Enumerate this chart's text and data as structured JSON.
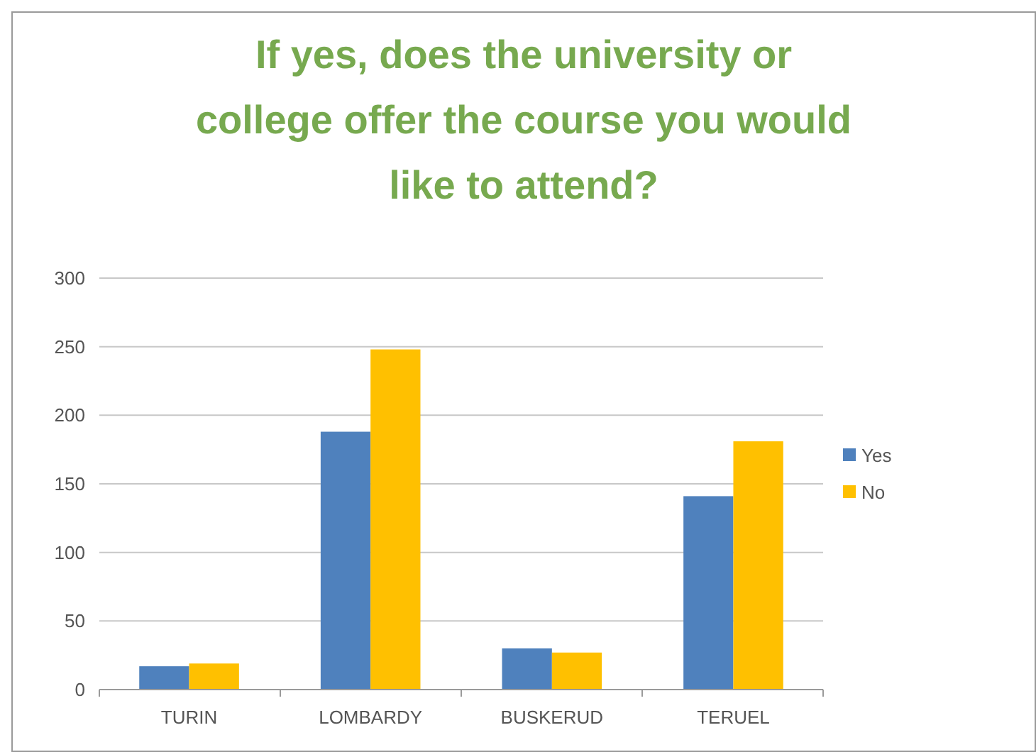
{
  "chart_data": {
    "type": "bar",
    "title": "If yes, does the university or college offer the course you would like to attend?",
    "categories": [
      "TURIN",
      "LOMBARDY",
      "BUSKERUD",
      "TERUEL"
    ],
    "series": [
      {
        "name": "Yes",
        "color": "#4f81bd",
        "values": [
          17,
          188,
          30,
          141
        ]
      },
      {
        "name": "No",
        "color": "#ffc000",
        "values": [
          19,
          248,
          27,
          181
        ]
      }
    ],
    "ylim": [
      0,
      300
    ],
    "yticks": [
      0,
      50,
      100,
      150,
      200,
      250,
      300
    ],
    "grid": "y",
    "legend": "right"
  }
}
